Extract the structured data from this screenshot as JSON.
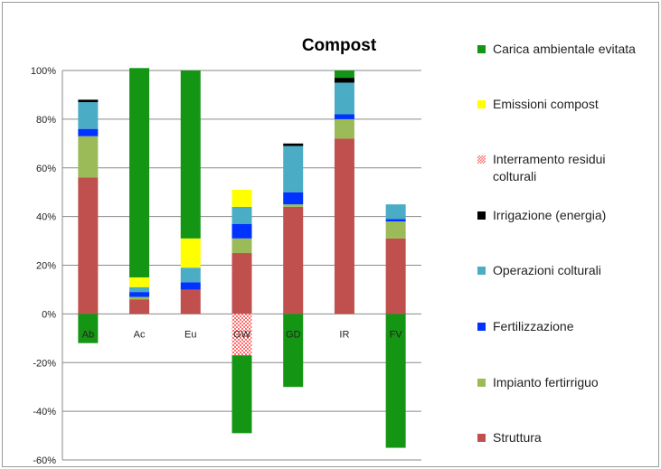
{
  "chart_data": {
    "type": "bar",
    "stacked": true,
    "title": "Compost",
    "xlabel": "",
    "ylabel": "",
    "ylim": [
      -60,
      100
    ],
    "y_ticks": [
      "100%",
      "80%",
      "60%",
      "40%",
      "20%",
      "0%",
      "-20%",
      "-40%",
      "-60%"
    ],
    "y_tick_values": [
      100,
      80,
      60,
      40,
      20,
      0,
      -20,
      -40,
      -60
    ],
    "grid": true,
    "legend_position": "right",
    "categories": [
      "Ab",
      "Ac",
      "Eu",
      "GW",
      "GD",
      "IR",
      "FV"
    ],
    "series": [
      {
        "name": "Struttura",
        "color": "#c0504d",
        "values": [
          56,
          6,
          10,
          25,
          44,
          72,
          31
        ]
      },
      {
        "name": "Impianto fertirriguo",
        "color": "#9bbb59",
        "values": [
          17,
          1,
          0,
          6,
          1,
          8,
          7
        ]
      },
      {
        "name": "Fertilizzazione",
        "color": "#0033ff",
        "values": [
          3,
          2,
          3,
          6,
          5,
          2,
          1
        ]
      },
      {
        "name": "Operazioni colturali",
        "color": "#4bacc6",
        "values": [
          11,
          2,
          6,
          7,
          19,
          13,
          6
        ]
      },
      {
        "name": "Irrigazione (energia)",
        "color": "#000000",
        "values": [
          1,
          0,
          0,
          0,
          1,
          2,
          0
        ]
      },
      {
        "name": "Interramento residui colturali",
        "color": "#ff6b6b",
        "pattern": "checker",
        "values": [
          0,
          0,
          0,
          -17,
          0,
          0,
          0
        ]
      },
      {
        "name": "Emissioni compost",
        "color": "#ffff00",
        "values": [
          0,
          4,
          12,
          7,
          0,
          0,
          0
        ]
      },
      {
        "name": "Carica ambientale evitata",
        "color": "#149614",
        "values": [
          -12,
          86,
          69,
          -32,
          -30,
          3,
          -55
        ]
      }
    ]
  }
}
